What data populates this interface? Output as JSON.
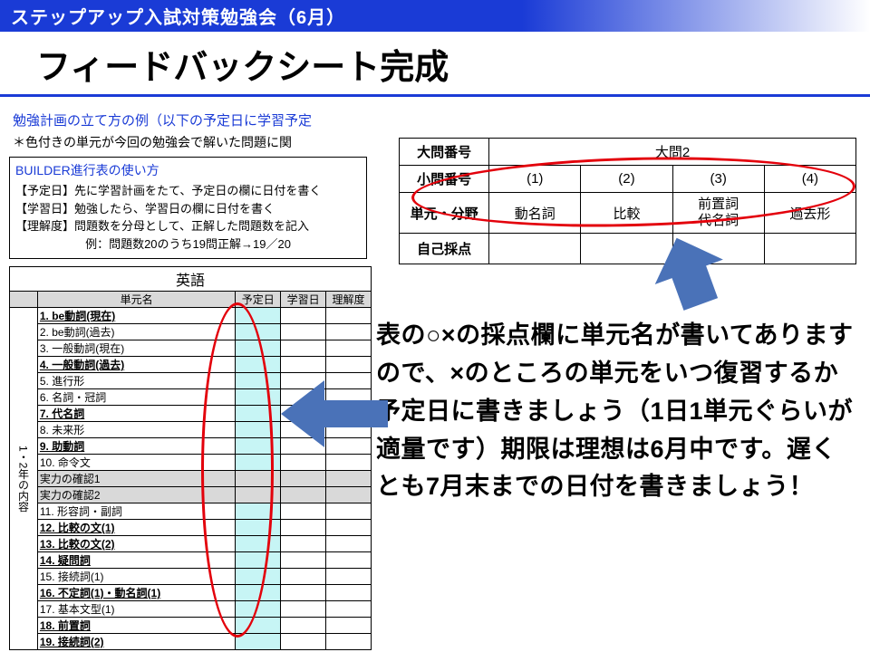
{
  "banner": "ステップアップ入試対策勉強会（6月）",
  "title": "フィードバックシート完成",
  "subtitle": "勉強計画の立て方の例（以下の予定日に学習予定",
  "note": "＊色付きの単元が今回の勉強会で解いた問題に関",
  "builder": {
    "header": "BUILDER進行表の使い方",
    "l1": "【予定日】先に学習計画をたて、予定日の欄に日付を書く",
    "l2": "【学習日】勉強したら、学習日の欄に日付を書く",
    "l3": "【理解度】問題数を分母として、正解した問題数を記入",
    "l4": "例：問題数20のうち19問正解→19／20"
  },
  "prog": {
    "title": "英語",
    "head": {
      "side": "",
      "unit": "単元名",
      "d1": "予定日",
      "d2": "学習日",
      "d3": "理解度"
    },
    "side": "1・2年の内容",
    "rows": [
      {
        "n": "1.",
        "u": "be動詞(現在)",
        "hl": true,
        "bold": true
      },
      {
        "n": "2.",
        "u": "be動詞(過去)",
        "hl": true,
        "bold": false
      },
      {
        "n": "3.",
        "u": "一般動詞(現在)",
        "hl": true,
        "bold": false
      },
      {
        "n": "4.",
        "u": "一般動詞(過去)",
        "hl": true,
        "bold": true
      },
      {
        "n": "5.",
        "u": "進行形",
        "hl": true,
        "bold": false
      },
      {
        "n": "6.",
        "u": "名詞・冠詞",
        "hl": true,
        "bold": false
      },
      {
        "n": "7.",
        "u": "代名詞",
        "hl": true,
        "bold": true
      },
      {
        "n": "8.",
        "u": "未来形",
        "hl": true,
        "bold": false
      },
      {
        "n": "9.",
        "u": "助動詞",
        "hl": true,
        "bold": true
      },
      {
        "n": "10.",
        "u": "命令文",
        "hl": true,
        "bold": false
      },
      {
        "n": "",
        "u": "実力の確認1",
        "hl": false,
        "bold": false,
        "gray": true
      },
      {
        "n": "",
        "u": "実力の確認2",
        "hl": false,
        "bold": false,
        "gray": true
      },
      {
        "n": "11.",
        "u": "形容詞・副詞",
        "hl": true,
        "bold": false
      },
      {
        "n": "12.",
        "u": "比較の文(1)",
        "hl": true,
        "bold": true
      },
      {
        "n": "13.",
        "u": "比較の文(2)",
        "hl": true,
        "bold": true
      },
      {
        "n": "14.",
        "u": "疑問詞",
        "hl": true,
        "bold": true
      },
      {
        "n": "15.",
        "u": "接続詞(1)",
        "hl": true,
        "bold": false
      },
      {
        "n": "16.",
        "u": "不定詞(1)・動名詞(1)",
        "hl": true,
        "bold": true
      },
      {
        "n": "17.",
        "u": "基本文型(1)",
        "hl": true,
        "bold": false
      },
      {
        "n": "18.",
        "u": "前置詞",
        "hl": true,
        "bold": true
      },
      {
        "n": "19.",
        "u": "接続詞(2)",
        "hl": true,
        "bold": true
      }
    ]
  },
  "rtable": {
    "r0c0": "大問番号",
    "r0c1": "大問2",
    "r1c0": "小問番号",
    "r1": [
      "(1)",
      "(2)",
      "(3)",
      "(4)"
    ],
    "r2c0": "単元・分野",
    "r2": [
      "動名詞",
      "比較",
      "前置詞\n代名詞",
      "過去形"
    ],
    "r3c0": "自己採点"
  },
  "explain": "表の○×の採点欄に単元名が書いてありますので、×のところの単元をいつ復習するか予定日に書きましょう（1日1単元ぐらいが適量です）期限は理想は6月中です。遅くとも7月末までの日付を書きましょう！",
  "colors": {
    "accent": "#1a3bd6",
    "red": "#e3000b",
    "hl": "#c7f5f5",
    "gray": "#d9d9d9",
    "arrow": "#4a72b8"
  }
}
